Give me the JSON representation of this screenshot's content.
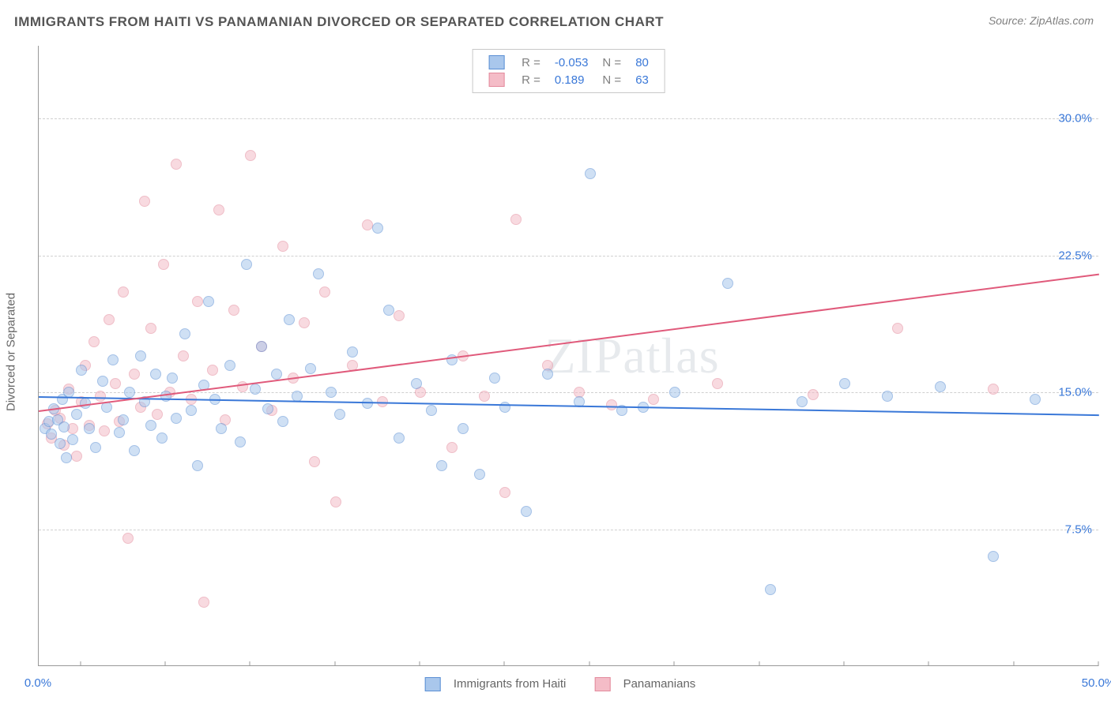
{
  "title": "IMMIGRANTS FROM HAITI VS PANAMANIAN DIVORCED OR SEPARATED CORRELATION CHART",
  "source": "Source: ZipAtlas.com",
  "watermark": "ZIPatlas",
  "ylabel": "Divorced or Separated",
  "chart": {
    "type": "scatter",
    "background_color": "#ffffff",
    "grid_color": "#d0d0d0",
    "axis_color": "#999999",
    "text_color": "#666666",
    "value_color": "#3a78d8",
    "xlim": [
      0,
      50
    ],
    "ylim": [
      0,
      34
    ],
    "yticks": [
      7.5,
      15.0,
      22.5,
      30.0
    ],
    "ytick_labels": [
      "7.5%",
      "15.0%",
      "22.5%",
      "30.0%"
    ],
    "xticks": [
      0,
      50
    ],
    "xtick_labels": [
      "0.0%",
      "50.0%"
    ],
    "xtick_marks": [
      2,
      6,
      10,
      14,
      18,
      22,
      26,
      30,
      34,
      38,
      42,
      46,
      50
    ],
    "marker_radius": 7,
    "marker_opacity": 0.55,
    "title_fontsize": 17,
    "label_fontsize": 15
  },
  "series": [
    {
      "key": "haiti",
      "label": "Immigrants from Haiti",
      "fill": "#a9c7ec",
      "stroke": "#5a8fd4",
      "line_color": "#3a78d8",
      "R": "-0.053",
      "N": "80",
      "trend": {
        "x1": 0,
        "y1": 14.8,
        "x2": 50,
        "y2": 13.8
      },
      "points": [
        [
          0.3,
          13.0
        ],
        [
          0.5,
          13.4
        ],
        [
          0.6,
          12.7
        ],
        [
          0.7,
          14.1
        ],
        [
          0.9,
          13.5
        ],
        [
          1.0,
          12.2
        ],
        [
          1.1,
          14.6
        ],
        [
          1.2,
          13.1
        ],
        [
          1.3,
          11.4
        ],
        [
          1.4,
          15.0
        ],
        [
          1.6,
          12.4
        ],
        [
          1.8,
          13.8
        ],
        [
          2.0,
          16.2
        ],
        [
          2.2,
          14.4
        ],
        [
          2.4,
          13.0
        ],
        [
          2.7,
          12.0
        ],
        [
          3.0,
          15.6
        ],
        [
          3.2,
          14.2
        ],
        [
          3.5,
          16.8
        ],
        [
          3.8,
          12.8
        ],
        [
          4.0,
          13.5
        ],
        [
          4.3,
          15.0
        ],
        [
          4.5,
          11.8
        ],
        [
          4.8,
          17.0
        ],
        [
          5.0,
          14.5
        ],
        [
          5.3,
          13.2
        ],
        [
          5.5,
          16.0
        ],
        [
          5.8,
          12.5
        ],
        [
          6.0,
          14.8
        ],
        [
          6.3,
          15.8
        ],
        [
          6.5,
          13.6
        ],
        [
          6.9,
          18.2
        ],
        [
          7.2,
          14.0
        ],
        [
          7.5,
          11.0
        ],
        [
          7.8,
          15.4
        ],
        [
          8.0,
          20.0
        ],
        [
          8.3,
          14.6
        ],
        [
          8.6,
          13.0
        ],
        [
          9.0,
          16.5
        ],
        [
          9.5,
          12.3
        ],
        [
          9.8,
          22.0
        ],
        [
          10.2,
          15.2
        ],
        [
          10.5,
          17.5
        ],
        [
          10.8,
          14.1
        ],
        [
          11.2,
          16.0
        ],
        [
          11.5,
          13.4
        ],
        [
          11.8,
          19.0
        ],
        [
          12.2,
          14.8
        ],
        [
          12.8,
          16.3
        ],
        [
          13.2,
          21.5
        ],
        [
          13.8,
          15.0
        ],
        [
          14.2,
          13.8
        ],
        [
          14.8,
          17.2
        ],
        [
          15.5,
          14.4
        ],
        [
          16.0,
          24.0
        ],
        [
          16.5,
          19.5
        ],
        [
          17.0,
          12.5
        ],
        [
          17.8,
          15.5
        ],
        [
          18.5,
          14.0
        ],
        [
          19.0,
          11.0
        ],
        [
          19.5,
          16.8
        ],
        [
          20.0,
          13.0
        ],
        [
          20.8,
          10.5
        ],
        [
          21.5,
          15.8
        ],
        [
          22.0,
          14.2
        ],
        [
          23.0,
          8.5
        ],
        [
          24.0,
          16.0
        ],
        [
          25.5,
          14.5
        ],
        [
          26.0,
          27.0
        ],
        [
          27.5,
          14.0
        ],
        [
          28.5,
          14.2
        ],
        [
          30.0,
          15.0
        ],
        [
          32.5,
          21.0
        ],
        [
          34.5,
          4.2
        ],
        [
          36.0,
          14.5
        ],
        [
          38.0,
          15.5
        ],
        [
          40.0,
          14.8
        ],
        [
          42.5,
          15.3
        ],
        [
          45.0,
          6.0
        ],
        [
          47.0,
          14.6
        ]
      ]
    },
    {
      "key": "panama",
      "label": "Panamanians",
      "fill": "#f4bcc7",
      "stroke": "#e38a9c",
      "line_color": "#e05a7b",
      "R": "0.189",
      "N": "63",
      "trend": {
        "x1": 0,
        "y1": 14.0,
        "x2": 50,
        "y2": 21.5
      },
      "points": [
        [
          0.4,
          13.3
        ],
        [
          0.6,
          12.5
        ],
        [
          0.8,
          14.0
        ],
        [
          1.0,
          13.6
        ],
        [
          1.2,
          12.1
        ],
        [
          1.4,
          15.2
        ],
        [
          1.6,
          13.0
        ],
        [
          1.8,
          11.5
        ],
        [
          2.0,
          14.5
        ],
        [
          2.2,
          16.5
        ],
        [
          2.4,
          13.2
        ],
        [
          2.6,
          17.8
        ],
        [
          2.9,
          14.8
        ],
        [
          3.1,
          12.9
        ],
        [
          3.3,
          19.0
        ],
        [
          3.6,
          15.5
        ],
        [
          3.8,
          13.4
        ],
        [
          4.0,
          20.5
        ],
        [
          4.2,
          7.0
        ],
        [
          4.5,
          16.0
        ],
        [
          4.8,
          14.2
        ],
        [
          5.0,
          25.5
        ],
        [
          5.3,
          18.5
        ],
        [
          5.6,
          13.8
        ],
        [
          5.9,
          22.0
        ],
        [
          6.2,
          15.0
        ],
        [
          6.5,
          27.5
        ],
        [
          6.8,
          17.0
        ],
        [
          7.2,
          14.6
        ],
        [
          7.5,
          20.0
        ],
        [
          7.8,
          3.5
        ],
        [
          8.2,
          16.2
        ],
        [
          8.5,
          25.0
        ],
        [
          8.8,
          13.5
        ],
        [
          9.2,
          19.5
        ],
        [
          9.6,
          15.3
        ],
        [
          10.0,
          28.0
        ],
        [
          10.5,
          17.5
        ],
        [
          11.0,
          14.0
        ],
        [
          11.5,
          23.0
        ],
        [
          12.0,
          15.8
        ],
        [
          12.5,
          18.8
        ],
        [
          13.0,
          11.2
        ],
        [
          13.5,
          20.5
        ],
        [
          14.0,
          9.0
        ],
        [
          14.8,
          16.5
        ],
        [
          15.5,
          24.2
        ],
        [
          16.2,
          14.5
        ],
        [
          17.0,
          19.2
        ],
        [
          18.0,
          15.0
        ],
        [
          19.5,
          12.0
        ],
        [
          20.0,
          17.0
        ],
        [
          21.0,
          14.8
        ],
        [
          22.0,
          9.5
        ],
        [
          22.5,
          24.5
        ],
        [
          24.0,
          16.5
        ],
        [
          25.5,
          15.0
        ],
        [
          27.0,
          14.3
        ],
        [
          29.0,
          14.6
        ],
        [
          32.0,
          15.5
        ],
        [
          36.5,
          14.9
        ],
        [
          40.5,
          18.5
        ],
        [
          45.0,
          15.2
        ]
      ]
    }
  ],
  "legend_top": {
    "R_label": "R =",
    "N_label": "N ="
  },
  "legend_bottom": {
    "items": [
      "Immigrants from Haiti",
      "Panamanians"
    ]
  }
}
